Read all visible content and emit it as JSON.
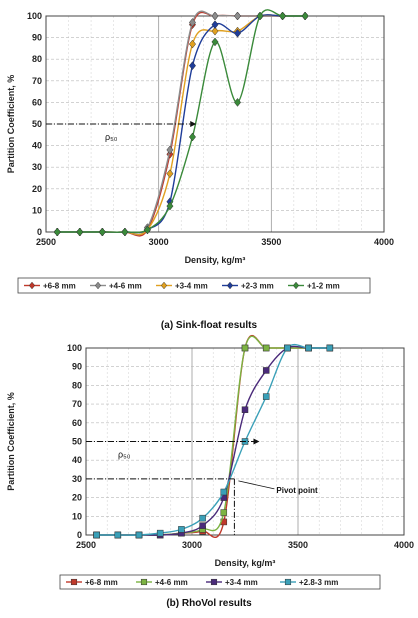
{
  "chart_data": [
    {
      "type": "line",
      "caption": "(a) Sink-float results",
      "xlabel": "Density, kg/m³",
      "ylabel": "Partition Coefficient, %",
      "xlim": [
        2500,
        4000
      ],
      "ylim": [
        0,
        100
      ],
      "x_ticks": [
        "2500",
        "3000",
        "3500",
        "4000"
      ],
      "y_ticks": [
        "0",
        "10",
        "20",
        "30",
        "40",
        "50",
        "60",
        "70",
        "80",
        "90",
        "100"
      ],
      "grid": true,
      "legend_position": "bottom",
      "annotation": "ρ₅₀",
      "annotation_y": 50,
      "series": [
        {
          "name": "+6-8 mm",
          "color": "#c0392b",
          "marker": "diamond",
          "x": [
            2550,
            2650,
            2750,
            2850,
            2950,
            3050,
            3150,
            3250,
            3350,
            3450,
            3550,
            3650
          ],
          "y": [
            0,
            0,
            0,
            0,
            1,
            36,
            96,
            100,
            100,
            100,
            100,
            100
          ]
        },
        {
          "name": "+4-6 mm",
          "color": "#8c8c8c",
          "marker": "diamond",
          "x": [
            2550,
            2650,
            2750,
            2850,
            2950,
            3050,
            3150,
            3250,
            3350,
            3450,
            3550,
            3650
          ],
          "y": [
            0,
            0,
            0,
            0,
            2,
            38,
            97,
            100,
            100,
            100,
            100,
            100
          ]
        },
        {
          "name": "+3-4 mm",
          "color": "#e0a020",
          "marker": "diamond",
          "x": [
            2550,
            2650,
            2750,
            2850,
            2950,
            3050,
            3150,
            3250,
            3350,
            3450,
            3550,
            3650
          ],
          "y": [
            0,
            0,
            0,
            0,
            1,
            27,
            87,
            93,
            93,
            100,
            100,
            100
          ]
        },
        {
          "name": "+2-3 mm",
          "color": "#1f3d99",
          "marker": "diamond",
          "x": [
            2550,
            2650,
            2750,
            2850,
            2950,
            3050,
            3150,
            3250,
            3350,
            3450,
            3550,
            3650
          ],
          "y": [
            0,
            0,
            0,
            0,
            1,
            14,
            77,
            96,
            92,
            100,
            100,
            100
          ]
        },
        {
          "name": "+1-2 mm",
          "color": "#3a8a3a",
          "marker": "diamond",
          "x": [
            2550,
            2650,
            2750,
            2850,
            2950,
            3050,
            3150,
            3250,
            3350,
            3450,
            3550,
            3650
          ],
          "y": [
            0,
            0,
            0,
            0,
            1,
            12,
            44,
            88,
            60,
            100,
            100,
            100
          ]
        }
      ]
    },
    {
      "type": "line",
      "caption": "(b) RhoVol results",
      "xlabel": "Density, kg/m³",
      "ylabel": "Partition Coefficient, %",
      "xlim": [
        2500,
        4000
      ],
      "ylim": [
        0,
        100
      ],
      "x_ticks": [
        "2500",
        "3000",
        "3500",
        "4000"
      ],
      "y_ticks": [
        "0",
        "10",
        "20",
        "30",
        "40",
        "50",
        "60",
        "70",
        "80",
        "90",
        "100"
      ],
      "grid": true,
      "legend_position": "bottom",
      "annotation": "ρ₅₀",
      "annotation_y": 50,
      "pivot_label": "Pivot point",
      "pivot": {
        "x": 3200,
        "y": 30
      },
      "series": [
        {
          "name": "+6-8 mm",
          "color": "#c0392b",
          "marker": "square",
          "x": [
            2550,
            2650,
            2750,
            2850,
            2950,
            3050,
            3150,
            3250,
            3350,
            3450,
            3550,
            3650
          ],
          "y": [
            0,
            0,
            0,
            0,
            1,
            2,
            7,
            100,
            100,
            100,
            100,
            100
          ]
        },
        {
          "name": "+4-6 mm",
          "color": "#7cb342",
          "marker": "square",
          "x": [
            2550,
            2650,
            2750,
            2850,
            2950,
            3050,
            3150,
            3250,
            3350,
            3450,
            3550,
            3650
          ],
          "y": [
            0,
            0,
            0,
            0,
            1,
            3,
            12,
            100,
            100,
            100,
            100,
            100
          ]
        },
        {
          "name": "+3-4 mm",
          "color": "#4a2a7a",
          "marker": "square",
          "x": [
            2550,
            2650,
            2750,
            2850,
            2950,
            3050,
            3150,
            3250,
            3350,
            3450,
            3550,
            3650
          ],
          "y": [
            0,
            0,
            0,
            0,
            1,
            5,
            20,
            67,
            88,
            100,
            100,
            100
          ]
        },
        {
          "name": "+2.8-3 mm",
          "color": "#3aa0b8",
          "marker": "square",
          "x": [
            2550,
            2650,
            2750,
            2850,
            2950,
            3050,
            3150,
            3250,
            3350,
            3450,
            3550,
            3650
          ],
          "y": [
            0,
            0,
            0,
            1,
            3,
            9,
            23,
            50,
            74,
            100,
            100,
            100
          ]
        }
      ]
    }
  ]
}
